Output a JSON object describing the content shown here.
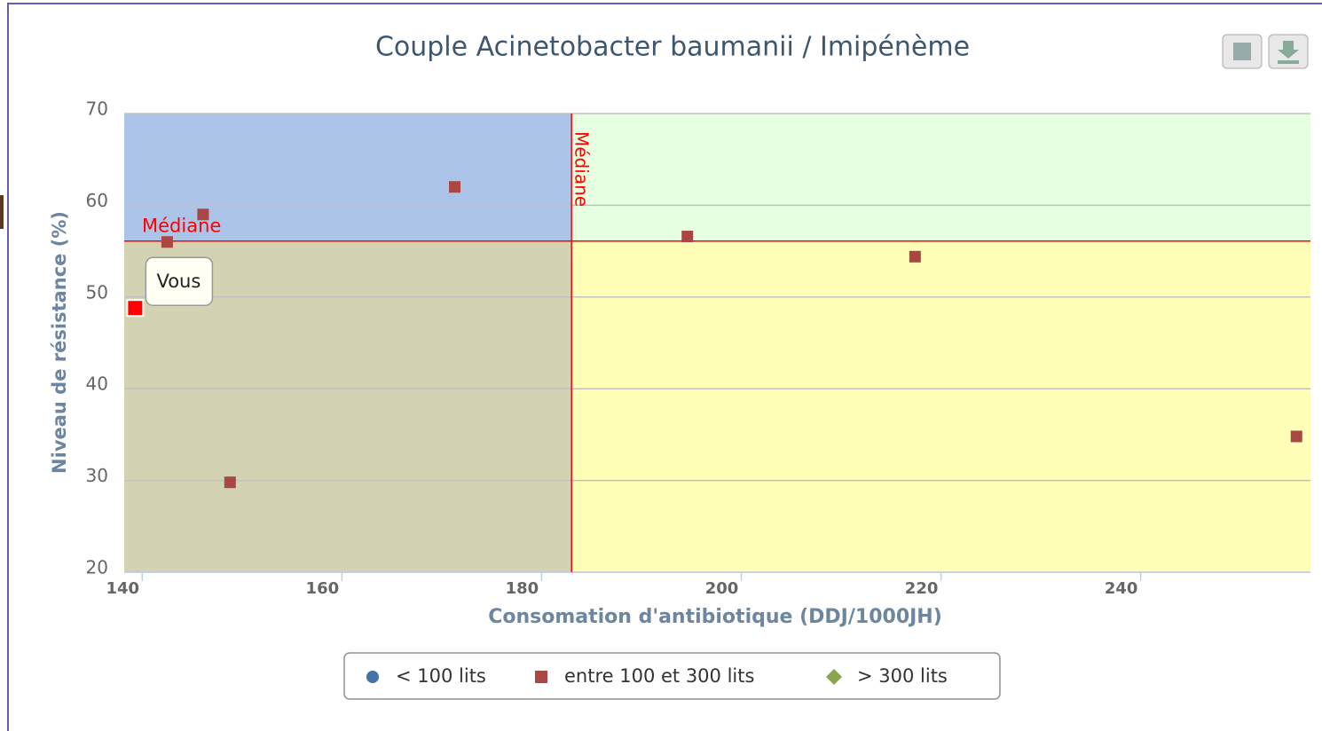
{
  "chart_data": {
    "type": "scatter",
    "title": "Couple Acinetobacter baumanii / Imipénème",
    "x_label": "Consomation d'antibiotique (DDJ/1000JH)",
    "y_label": "Niveau de résistance (%)",
    "xlim": [
      138.2,
      257
    ],
    "ylim": [
      20,
      70
    ],
    "xticks": [
      140,
      160,
      180,
      200,
      220,
      240
    ],
    "yticks": [
      20,
      30,
      40,
      50,
      60,
      70
    ],
    "grid": true,
    "median_x": 183,
    "median_y": 56.1,
    "annotations": [
      "Médiane",
      "Médiane"
    ],
    "quadrant_colors": [
      "#abc4e8",
      "#e6ffe0",
      "#d3d3b4",
      "#ffffb8"
    ],
    "series": [
      {
        "name": "< 100 lits",
        "color": "#4572a7",
        "marker": "circle",
        "x": [],
        "values": []
      },
      {
        "name": "entre 100 et 300 lits",
        "color": "#aa4643",
        "marker": "square",
        "x": [
          142.5,
          146.1,
          148.8,
          171.3,
          194.6,
          217.4,
          255.6
        ],
        "values": [
          56.0,
          59.0,
          29.8,
          62.0,
          56.6,
          54.4,
          34.8
        ]
      },
      {
        "name": "> 300 lits",
        "color": "#89a54e",
        "marker": "diamond",
        "x": [],
        "values": []
      },
      {
        "name": "Vous",
        "color": "#ff0000",
        "marker": "square",
        "legend": false,
        "tooltip": true,
        "x": [
          139.3
        ],
        "values": [
          48.8
        ]
      }
    ],
    "legend": "bottom"
  }
}
